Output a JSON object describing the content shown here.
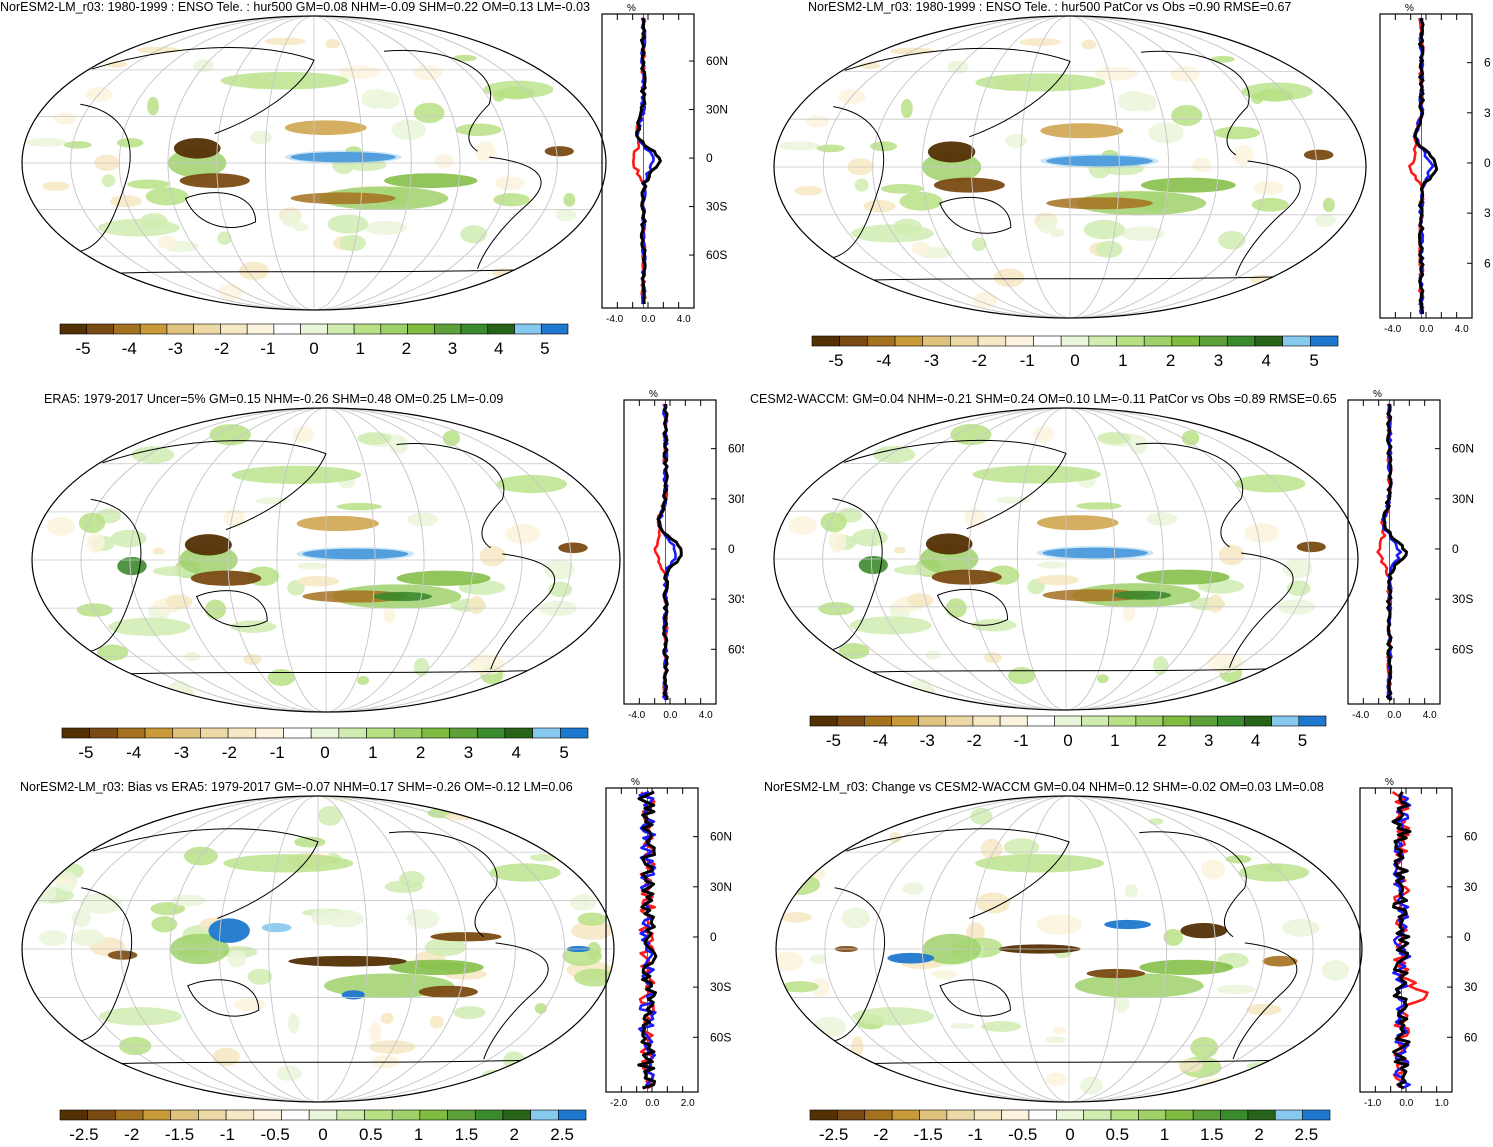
{
  "colors": {
    "palette": [
      "#543005",
      "#7a4a12",
      "#a4711f",
      "#c99a3a",
      "#dfc27d",
      "#ecd9a6",
      "#f6e8c3",
      "#fbf3dd",
      "#ffffff",
      "#eaf6da",
      "#d0ecb0",
      "#b8e186",
      "#9fd16b",
      "#7fbc41",
      "#5ea13a",
      "#3c8a2e",
      "#276419",
      "#86c8ee",
      "#1f78cf"
    ],
    "profile_lines": {
      "black": "#000000",
      "blue": "#1a1aff",
      "red": "#ff1a1a"
    },
    "grid": "#c8c8c8"
  },
  "panels": [
    {
      "title": "NorESM2-LM_r03: 1980-1999 : ENSO Tele. : hur500 GM=0.08 NHM=-0.09 SHM=0.22 OM=0.13 LM=-0.03",
      "colorbar_labels": [
        "-5",
        "-4",
        "-3",
        "-2",
        "-1",
        "0",
        "1",
        "2",
        "3",
        "4",
        "5"
      ],
      "profile_unit": "%",
      "profile_x_ticks": [
        "-4.0",
        "0.0",
        "4.0"
      ],
      "profile_y_ticks": [
        "60N",
        "30N",
        "0",
        "30S",
        "60S"
      ]
    },
    {
      "title": "NorESM2-LM_r03: 1980-1999 : ENSO Tele. : hur500 PatCor vs Obs =0.90 RMSE=0.67",
      "colorbar_labels": [
        "-5",
        "-4",
        "-3",
        "-2",
        "-1",
        "0",
        "1",
        "2",
        "3",
        "4",
        "5"
      ],
      "profile_unit": "%",
      "profile_x_ticks": [
        "-4.0",
        "0.0",
        "4.0"
      ],
      "profile_y_ticks": [
        "6",
        "3",
        "0",
        "3",
        "6"
      ]
    },
    {
      "title": "ERA5: 1979-2017 Uncer=5% GM=0.15 NHM=-0.26 SHM=0.48 OM=0.25 LM=-0.09",
      "colorbar_labels": [
        "-5",
        "-4",
        "-3",
        "-2",
        "-1",
        "0",
        "1",
        "2",
        "3",
        "4",
        "5"
      ],
      "profile_unit": "%",
      "profile_x_ticks": [
        "-4.0",
        "0.0",
        "4.0"
      ],
      "profile_y_ticks": [
        "60N",
        "30N",
        "0",
        "30S",
        "60S"
      ]
    },
    {
      "title": "CESM2-WACCM: GM=0.04 NHM=-0.21 SHM=0.24 OM=0.10 LM=-0.11 PatCor vs Obs =0.89 RMSE=0.65",
      "colorbar_labels": [
        "-5",
        "-4",
        "-3",
        "-2",
        "-1",
        "0",
        "1",
        "2",
        "3",
        "4",
        "5"
      ],
      "profile_unit": "%",
      "profile_x_ticks": [
        "-4.0",
        "0.0",
        "4.0"
      ],
      "profile_y_ticks": [
        "60N",
        "30N",
        "0",
        "30S",
        "60S"
      ]
    },
    {
      "title": "NorESM2-LM_r03: Bias vs ERA5: 1979-2017 GM=-0.07 NHM=0.17 SHM=-0.26 OM=-0.12 LM=0.06",
      "colorbar_labels": [
        "-2.5",
        "-2",
        "-1.5",
        "-1",
        "-0.5",
        "0",
        "0.5",
        "1",
        "1.5",
        "2",
        "2.5"
      ],
      "profile_unit": "%",
      "profile_x_ticks": [
        "-2.0",
        "0.0",
        "2.0"
      ],
      "profile_y_ticks": [
        "60N",
        "30N",
        "0",
        "30S",
        "60S"
      ]
    },
    {
      "title": "NorESM2-LM_r03: Change vs CESM2-WACCM GM=0.04 NHM=0.12 SHM=-0.02 OM=0.03 LM=0.08",
      "colorbar_labels": [
        "-2.5",
        "-2",
        "-1.5",
        "-1",
        "-0.5",
        "0",
        "0.5",
        "1",
        "1.5",
        "2",
        "2.5"
      ],
      "profile_unit": "%",
      "profile_x_ticks": [
        "-1.0",
        "0.0",
        "1.0"
      ],
      "profile_y_ticks": [
        "60",
        "30",
        "0",
        "30",
        "60"
      ]
    }
  ]
}
